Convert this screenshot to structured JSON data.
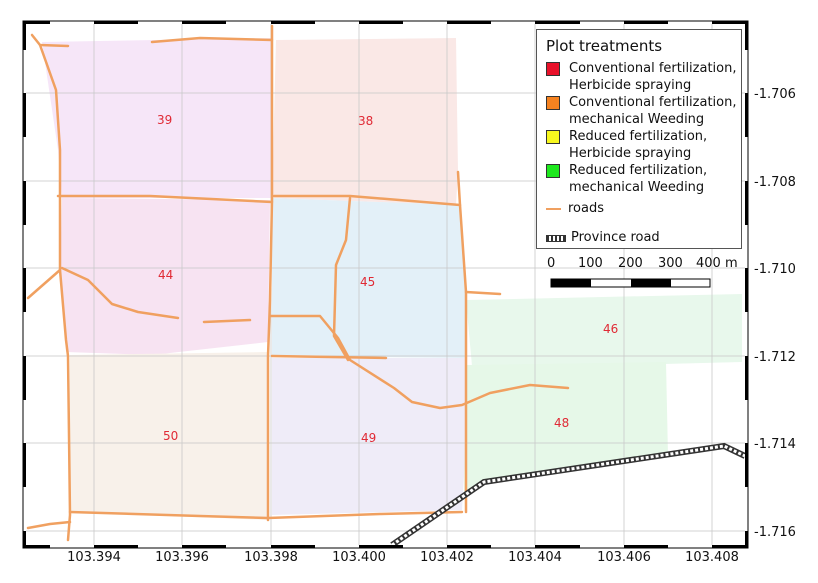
{
  "map": {
    "x_ticks": [
      "103.394",
      "103.396",
      "103.398",
      "103.400",
      "103.402",
      "103.404",
      "103.406",
      "103.408"
    ],
    "y_ticks": [
      "-1.706",
      "-1.708",
      "-1.710",
      "-1.712",
      "-1.714",
      "-1.716"
    ],
    "plots": [
      {
        "id": "39",
        "label": "39",
        "color": "#f6e6f8"
      },
      {
        "id": "38",
        "label": "38",
        "color": "#fae8e6"
      },
      {
        "id": "44",
        "label": "44",
        "color": "#f7e3f2"
      },
      {
        "id": "45",
        "label": "45",
        "color": "#e3f0f8"
      },
      {
        "id": "46",
        "label": "46",
        "color": "#e8f8ec"
      },
      {
        "id": "50",
        "label": "50",
        "color": "#f8f1ea"
      },
      {
        "id": "49",
        "label": "49",
        "color": "#efecf8"
      },
      {
        "id": "48",
        "label": "48",
        "color": "#e6f8e8"
      }
    ],
    "road_color": "#f0a060"
  },
  "legend": {
    "title": "Plot treatments",
    "items": [
      {
        "line1": "Conventional fertilization,",
        "line2": "Herbicide spraying",
        "color": "#e8112a"
      },
      {
        "line1": "Conventional fertilization,",
        "line2": "mechanical Weeding",
        "color": "#f58220"
      },
      {
        "line1": "Reduced fertilization,",
        "line2": "Herbicide spraying",
        "color": "#f7f71e"
      },
      {
        "line1": "Reduced fertilization,",
        "line2": "mechanical Weeding",
        "color": "#1ee81e"
      }
    ],
    "roads_label": "roads",
    "province_road_label": "Province road"
  },
  "scale_bar": {
    "labels": [
      "0",
      "100",
      "200",
      "300",
      "400 m"
    ]
  }
}
